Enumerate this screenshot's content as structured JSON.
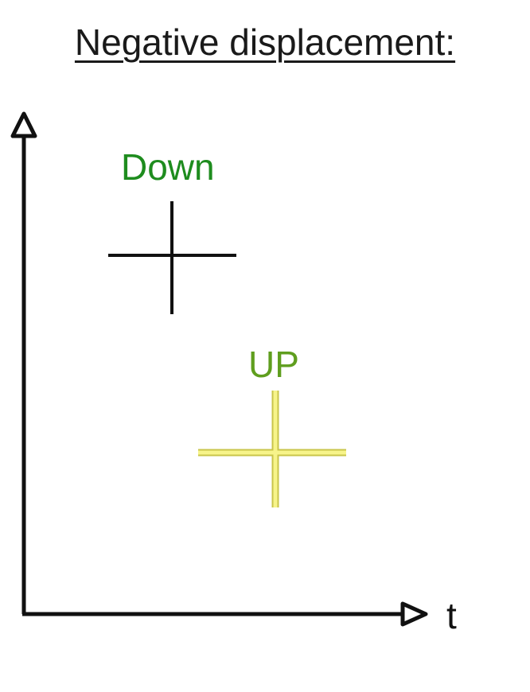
{
  "title": "Negative displacement:",
  "axes": {
    "x_label": "t"
  },
  "labels": {
    "down": {
      "text": "Down",
      "color": "#1e8c1e"
    },
    "up": {
      "text": "UP",
      "color": "#5f9e1e"
    }
  },
  "colors": {
    "axis": "#111111",
    "down_cross": "#111111",
    "up_cross": "#f2ef6a",
    "up_cross_edge": "#c9c54a"
  }
}
